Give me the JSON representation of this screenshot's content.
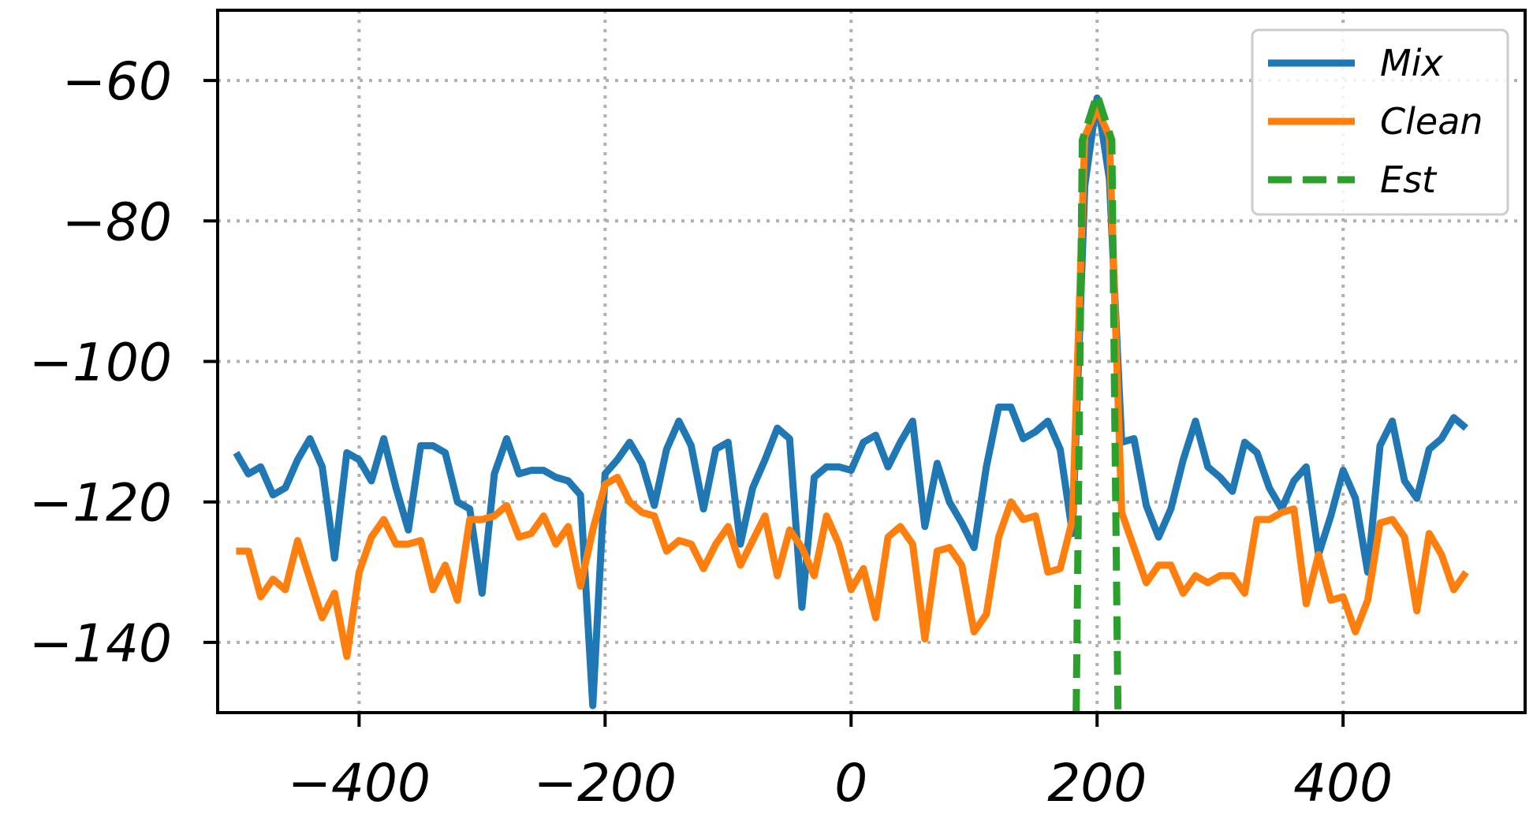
{
  "chart_data": {
    "type": "line",
    "xlim": [
      -515,
      548
    ],
    "ylim": [
      -150,
      -50
    ],
    "xticks": [
      -400,
      -200,
      0,
      200,
      400
    ],
    "yticks": [
      -140,
      -120,
      -100,
      -80,
      -60
    ],
    "xtick_labels": [
      "−400",
      "−200",
      "0",
      "200",
      "400"
    ],
    "ytick_labels": [
      "−140",
      "−120",
      "−100",
      "−80",
      "−60"
    ],
    "grid": true,
    "legend_position": "top-right",
    "x": [
      -500,
      -490,
      -480,
      -470,
      -460,
      -450,
      -440,
      -430,
      -420,
      -410,
      -400,
      -390,
      -380,
      -370,
      -360,
      -350,
      -340,
      -330,
      -320,
      -310,
      -300,
      -290,
      -280,
      -270,
      -260,
      -250,
      -240,
      -230,
      -220,
      -210,
      -200,
      -190,
      -180,
      -170,
      -160,
      -150,
      -140,
      -130,
      -120,
      -110,
      -100,
      -90,
      -80,
      -70,
      -60,
      -50,
      -40,
      -30,
      -20,
      -10,
      0,
      10,
      20,
      30,
      40,
      50,
      60,
      70,
      80,
      90,
      100,
      110,
      120,
      130,
      140,
      150,
      160,
      170,
      180,
      190,
      200,
      210,
      220,
      230,
      240,
      250,
      260,
      270,
      280,
      290,
      300,
      310,
      320,
      330,
      340,
      350,
      360,
      370,
      380,
      390,
      400,
      410,
      420,
      430,
      440,
      450,
      460,
      470,
      480,
      490,
      500
    ],
    "series": [
      {
        "name": "Mix",
        "color": "#1f77b4",
        "style": "solid",
        "values": [
          -113,
          -116,
          -115,
          -119,
          -118,
          -114,
          -111,
          -115,
          -128,
          -113,
          -114,
          -117,
          -111,
          -118,
          -124,
          -112,
          -112,
          -113,
          -120,
          -121,
          -133,
          -116,
          -111,
          -116,
          -115.5,
          -115.5,
          -116.5,
          -117,
          -119,
          -149,
          -116,
          -114,
          -111.5,
          -114.5,
          -120.5,
          -112.5,
          -108.5,
          -112,
          -121,
          -112.5,
          -111.5,
          -126,
          -118,
          -114,
          -109.5,
          -111,
          -135,
          -116.5,
          -115,
          -115,
          -115.5,
          -111.5,
          -110.5,
          -115,
          -111.5,
          -108.5,
          -123.5,
          -114.5,
          -120,
          -123,
          -126.5,
          -115,
          -106.5,
          -106.5,
          -111,
          -110,
          -108.5,
          -112.5,
          -124.5,
          -75,
          -62.5,
          -74,
          -111.5,
          -111,
          -120.5,
          -125,
          -121,
          -114,
          -108.5,
          -115,
          -116.5,
          -118.5,
          -111.5,
          -113,
          -118,
          -121,
          -117,
          -115,
          -127.5,
          -122,
          -115.5,
          -119.5,
          -130,
          -112,
          -108.5,
          -117,
          -119.5,
          -112.5,
          -111,
          -108,
          -109.5
        ]
      },
      {
        "name": "Clean",
        "color": "#ff7f0e",
        "style": "solid",
        "values": [
          -127,
          -127,
          -133.5,
          -131,
          -132.5,
          -125.5,
          -131,
          -136.5,
          -133,
          -142,
          -130,
          -125,
          -122.5,
          -126,
          -126,
          -125.5,
          -132.5,
          -129,
          -134,
          -122.5,
          -122.5,
          -122,
          -120.5,
          -125,
          -124.5,
          -122,
          -126,
          -123.5,
          -132,
          -124,
          -117.5,
          -116.5,
          -120,
          -121.5,
          -122,
          -127,
          -125.5,
          -126,
          -129.5,
          -126,
          -123.5,
          -129,
          -125.5,
          -122,
          -130.5,
          -124,
          -126.5,
          -130.5,
          -122,
          -126,
          -132.5,
          -129.5,
          -136.5,
          -125,
          -123.5,
          -126,
          -139.5,
          -127,
          -126.5,
          -129,
          -138.5,
          -136,
          -125,
          -120,
          -122.5,
          -122,
          -130,
          -129.5,
          -122.5,
          -68,
          -64,
          -68,
          -121.5,
          -126.5,
          -131.5,
          -129,
          -129,
          -133,
          -130.5,
          -131.5,
          -130.5,
          -130.5,
          -133,
          -122.5,
          -122.5,
          -121.5,
          -121,
          -134.5,
          -127.5,
          -134,
          -133.5,
          -138.5,
          -134,
          -123,
          -122.5,
          -125,
          -135.5,
          -124.5,
          -127.5,
          -132.5,
          -130
        ]
      },
      {
        "name": "Est",
        "color": "#2ca02c",
        "style": "dashed",
        "points": [
          [
            183,
            -150
          ],
          [
            188,
            -68.5
          ],
          [
            200,
            -62
          ],
          [
            212,
            -68.5
          ],
          [
            217,
            -150
          ]
        ]
      }
    ]
  }
}
